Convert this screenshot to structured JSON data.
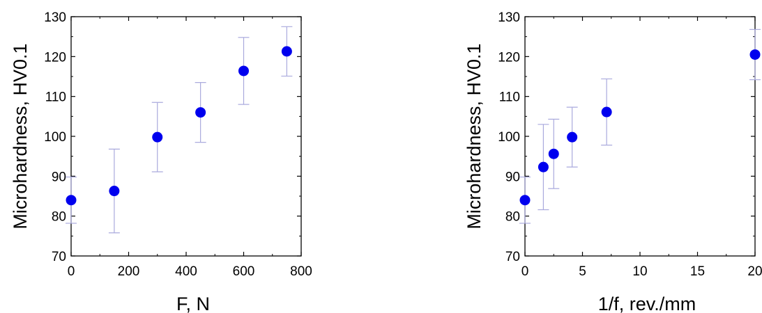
{
  "chart_data": [
    {
      "type": "scatter",
      "xlabel": "F, N",
      "ylabel": "Microhardness, HV0.1",
      "xlim": [
        0,
        800
      ],
      "ylim": [
        70,
        130
      ],
      "xticks": [
        0,
        200,
        400,
        600,
        800
      ],
      "yticks": [
        70,
        80,
        90,
        100,
        110,
        120,
        130
      ],
      "grid": false,
      "marker_color": "#0000ee",
      "errorbar_color": "#aaaadd",
      "points": [
        {
          "x": 0,
          "y": 84.0,
          "err": 5.8
        },
        {
          "x": 150,
          "y": 86.3,
          "err": 10.5
        },
        {
          "x": 300,
          "y": 99.8,
          "err": 8.7
        },
        {
          "x": 450,
          "y": 106.0,
          "err": 7.5
        },
        {
          "x": 600,
          "y": 116.4,
          "err": 8.4
        },
        {
          "x": 750,
          "y": 121.3,
          "err": 6.2
        }
      ]
    },
    {
      "type": "scatter",
      "xlabel": "1/f, rev./mm",
      "ylabel": "Microhardness, HV0.1",
      "xlim": [
        0,
        20
      ],
      "ylim": [
        70,
        130
      ],
      "xticks": [
        0,
        5,
        10,
        15,
        20
      ],
      "yticks": [
        70,
        80,
        90,
        100,
        110,
        120,
        130
      ],
      "grid": false,
      "marker_color": "#0000ee",
      "errorbar_color": "#aaaadd",
      "points": [
        {
          "x": 0,
          "y": 84.0,
          "err": 5.8
        },
        {
          "x": 1.6,
          "y": 92.3,
          "err": 10.7
        },
        {
          "x": 2.5,
          "y": 95.6,
          "err": 8.7
        },
        {
          "x": 4.1,
          "y": 99.8,
          "err": 7.5
        },
        {
          "x": 7.1,
          "y": 106.1,
          "err": 8.3
        },
        {
          "x": 20,
          "y": 120.5,
          "err": 6.3
        }
      ]
    }
  ]
}
